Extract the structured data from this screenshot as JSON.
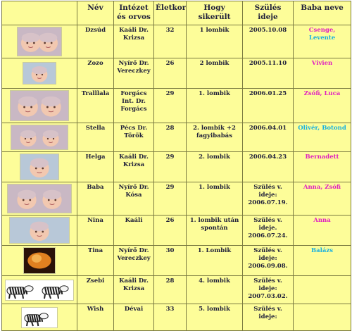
{
  "headers": {
    "photo": "",
    "name": "Név",
    "institute": "Intézet és orvos",
    "age": "Életkor",
    "how": "Hogy sikerült",
    "due": "Szülés ideje",
    "baby": "Baba neve"
  },
  "rows": [
    {
      "name": "Dzsúd",
      "institute": "Kaáli Dr. Krizsa",
      "age": "32",
      "how": "1 lombik",
      "due": "2005.10.08",
      "babies": [
        {
          "text": "Csenge",
          "color": "#e020c0"
        },
        {
          "text": ", ",
          "color": "#e020c0"
        },
        {
          "text": "Levente",
          "color": "#18b0e0"
        }
      ]
    },
    {
      "name": "Zozo",
      "institute": "Nyírő Dr. Vereczkey",
      "age": "26",
      "how": "2 lombik",
      "due": "2005.11.10",
      "babies": [
        {
          "text": "Vivien",
          "color": "#e020c0"
        }
      ]
    },
    {
      "name": "Tralllala",
      "institute": "Forgács Int. Dr. Forgács",
      "age": "29",
      "how": "1. lombik",
      "due": "2006.01.25",
      "babies": [
        {
          "text": "Zsófi,  Luca",
          "color": "#e020c0"
        }
      ]
    },
    {
      "name": "Stella",
      "institute": "Pécs Dr. Török",
      "age": "28",
      "how": "2. lombik +2 fagyibabás",
      "due": "2006.04.01",
      "babies": [
        {
          "text": "Olivér, Botond",
          "color": "#18b0e0"
        }
      ]
    },
    {
      "name": "Helga",
      "institute": "Kaáli Dr. Krizsa",
      "age": "29",
      "how": "2. lombik",
      "due": "2006.04.23",
      "babies": [
        {
          "text": "Bernadett",
          "color": "#e020c0"
        }
      ]
    },
    {
      "name": "Baba",
      "institute": "Nyírő Dr. Kósa",
      "age": "29",
      "how": "1. lombik",
      "due": "Szülés v. ideje: 2006.07.19.",
      "babies": [
        {
          "text": "Anna,  Zsófi",
          "color": "#e020c0"
        }
      ]
    },
    {
      "name": "Nina",
      "institute": "Kaáli",
      "age": "26",
      "how": "1. lombik után spontán",
      "due": "Szülés v. ideje. 2006.07.24.",
      "babies": [
        {
          "text": "Anna",
          "color": "#e020c0"
        }
      ]
    },
    {
      "name": "Tina",
      "institute": "Nyírő Dr. Vereczkey",
      "age": "30",
      "how": "1. Lombik",
      "due": "Szülés v. ideje: 2006.09.08.",
      "babies": [
        {
          "text": "Balázs",
          "color": "#18b0e0"
        }
      ]
    },
    {
      "name": "Zsebi",
      "institute": "Kaáli Dr. Krizsa",
      "age": "28",
      "how": "4. lombik",
      "due": "Szülés v. ideje: 2007.03.02.",
      "babies": []
    },
    {
      "name": "Wish",
      "institute": "Dévai",
      "age": "33",
      "how": "5. lombik",
      "due": "Szülés v. ideje:",
      "babies": []
    }
  ],
  "icons": [
    "baby-photo-icon",
    "zebra-icon",
    "ultrasound-icon"
  ],
  "colors": {
    "background": "#fdfd99",
    "border": "#7a7a40",
    "pink": "#e020c0",
    "cyan": "#18b0e0"
  }
}
